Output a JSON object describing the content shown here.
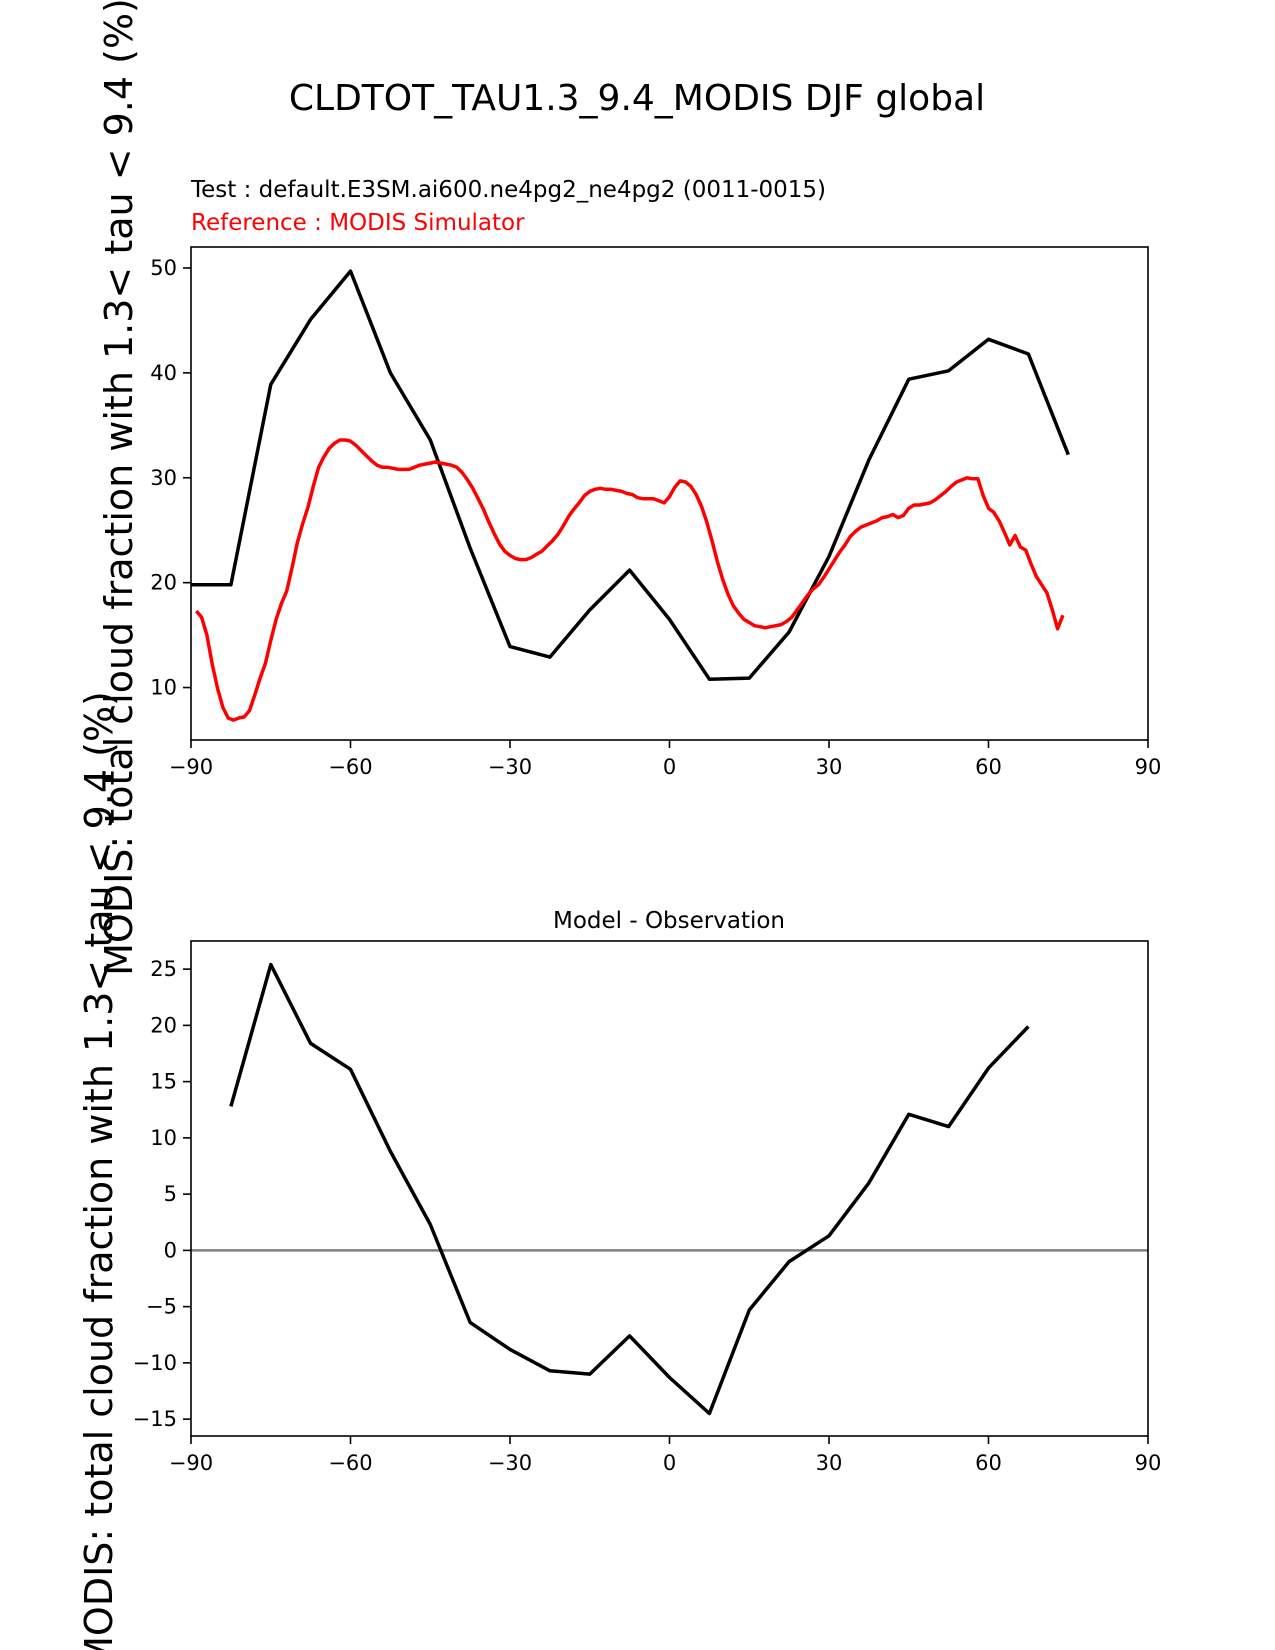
{
  "figure": {
    "title": "CLDTOT_TAU1.3_9.4_MODIS DJF global",
    "test_label": "Test : default.E3SM.ai600.ne4pg2_ne4pg2 (0011-0015)",
    "reference_label": "Reference : MODIS Simulator",
    "ylabel": "MODIS: total cloud fraction with 1.3< tau < 9.4 (%)"
  },
  "colors": {
    "test": "#000000",
    "reference": "#ff0000",
    "zero_line": "#808080",
    "axes": "#000000"
  },
  "chart_data": [
    {
      "type": "line",
      "panel": "top",
      "title": "",
      "xlabel": "",
      "ylabel": "MODIS: total cloud fraction with 1.3< tau < 9.4 (%)",
      "xlim": [
        -90,
        90
      ],
      "ylim": [
        5,
        52
      ],
      "xticks": [
        -90,
        -60,
        -30,
        0,
        30,
        60,
        90
      ],
      "xtick_labels": [
        "−90",
        "−60",
        "−30",
        "0",
        "30",
        "60",
        "90"
      ],
      "yticks": [
        10,
        20,
        30,
        40,
        50
      ],
      "ytick_labels": [
        "10",
        "20",
        "30",
        "40",
        "50"
      ],
      "grid": false,
      "series": [
        {
          "name": "",
          "color": "#000000",
          "x": [
            -90,
            -82.5,
            -75,
            -67.5,
            -60,
            -52.5,
            -45,
            -37.5,
            -30,
            -22.5,
            -15,
            -7.5,
            0,
            7.5,
            15,
            22.5,
            30,
            37.5,
            45,
            52.5,
            60,
            67.5,
            75
          ],
          "values": [
            19.8,
            19.8,
            38.9,
            45.1,
            49.7,
            40.0,
            33.6,
            23.3,
            13.9,
            12.9,
            17.4,
            21.2,
            16.5,
            10.8,
            10.9,
            15.3,
            22.5,
            31.7,
            39.4,
            40.2,
            43.2,
            41.8,
            32.2
          ]
        },
        {
          "name": "",
          "color": "#ff0000",
          "x": [
            -89,
            -88,
            -87,
            -86,
            -85,
            -84,
            -83,
            -82,
            -81,
            -80,
            -79,
            -78,
            -77,
            -76,
            -75,
            -74,
            -73,
            -72,
            -71,
            -70,
            -69,
            -68,
            -67,
            -66,
            -65,
            -64,
            -63,
            -62,
            -61,
            -60,
            -59,
            -58,
            -57,
            -56,
            -55,
            -54,
            -53,
            -52,
            -51,
            -50,
            -49,
            -48,
            -47,
            -46,
            -45,
            -44,
            -43,
            -42,
            -41,
            -40,
            -39,
            -38,
            -37,
            -36,
            -35,
            -34,
            -33,
            -32,
            -31,
            -30,
            -29,
            -28,
            -27,
            -26,
            -25,
            -24,
            -23,
            -22,
            -21,
            -20,
            -19,
            -18,
            -17,
            -16,
            -15,
            -14,
            -13,
            -12,
            -11,
            -10,
            -9,
            -8,
            -7,
            -6,
            -5,
            -4,
            -3,
            -2,
            -1,
            0,
            1,
            2,
            3,
            4,
            5,
            6,
            7,
            8,
            9,
            10,
            11,
            12,
            13,
            14,
            15,
            16,
            17,
            18,
            19,
            20,
            21,
            22,
            23,
            24,
            25,
            26,
            27,
            28,
            29,
            30,
            31,
            32,
            33,
            34,
            35,
            36,
            37,
            38,
            39,
            40,
            41,
            42,
            43,
            44,
            45,
            46,
            47,
            48,
            49,
            50,
            51,
            52,
            53,
            54,
            55,
            56,
            57,
            58,
            59,
            60,
            61,
            62,
            63,
            64,
            65,
            66,
            67,
            68,
            69,
            70,
            71,
            72,
            73,
            74
          ],
          "values": [
            17.3,
            16.7,
            15.0,
            12.2,
            9.9,
            8.1,
            7.1,
            6.9,
            7.1,
            7.2,
            7.8,
            9.3,
            10.9,
            12.3,
            14.5,
            16.5,
            18.0,
            19.2,
            21.4,
            23.8,
            25.6,
            27.2,
            29.2,
            31.0,
            32.0,
            32.8,
            33.3,
            33.6,
            33.6,
            33.5,
            33.1,
            32.6,
            32.1,
            31.6,
            31.2,
            31.0,
            31.0,
            30.9,
            30.8,
            30.8,
            30.8,
            31.0,
            31.2,
            31.3,
            31.4,
            31.5,
            31.4,
            31.3,
            31.2,
            31.0,
            30.5,
            29.8,
            29.0,
            28.0,
            27.0,
            25.8,
            24.7,
            23.7,
            23.0,
            22.6,
            22.3,
            22.2,
            22.2,
            22.4,
            22.7,
            23.0,
            23.5,
            24.0,
            24.6,
            25.4,
            26.3,
            27.0,
            27.6,
            28.3,
            28.7,
            28.9,
            29.0,
            28.9,
            28.9,
            28.8,
            28.7,
            28.5,
            28.4,
            28.1,
            28.0,
            28.0,
            28.0,
            27.8,
            27.6,
            28.2,
            29.1,
            29.7,
            29.6,
            29.2,
            28.4,
            27.3,
            25.8,
            24.0,
            22.0,
            20.3,
            18.9,
            17.8,
            17.1,
            16.5,
            16.2,
            15.9,
            15.8,
            15.7,
            15.8,
            15.9,
            16.0,
            16.3,
            16.7,
            17.4,
            18.1,
            18.8,
            19.4,
            19.8,
            20.5,
            21.3,
            22.1,
            22.9,
            23.6,
            24.4,
            24.9,
            25.3,
            25.5,
            25.7,
            25.9,
            26.2,
            26.3,
            26.5,
            26.2,
            26.4,
            27.1,
            27.4,
            27.4,
            27.5,
            27.6,
            27.9,
            28.3,
            28.7,
            29.2,
            29.6,
            29.8,
            30.0,
            29.9,
            29.9,
            28.3,
            27.1,
            26.7,
            25.9,
            24.8,
            23.6,
            24.5,
            23.4,
            23.1,
            21.8,
            20.6,
            19.8,
            19.0,
            17.4,
            15.6,
            16.9
          ]
        }
      ]
    },
    {
      "type": "line",
      "panel": "bottom",
      "title": "Model - Observation",
      "xlabel": "",
      "ylabel": "MODIS: total cloud fraction with 1.3< tau < 9.4 (%)",
      "xlim": [
        -90,
        90
      ],
      "ylim": [
        -16.5,
        27.5
      ],
      "xticks": [
        -90,
        -60,
        -30,
        0,
        30,
        60,
        90
      ],
      "xtick_labels": [
        "−90",
        "−60",
        "−30",
        "0",
        "30",
        "60",
        "90"
      ],
      "yticks": [
        -15,
        -10,
        -5,
        0,
        5,
        10,
        15,
        20,
        25
      ],
      "ytick_labels": [
        "−15",
        "−10",
        "−5",
        "0",
        "5",
        "10",
        "15",
        "20",
        "25"
      ],
      "grid": false,
      "reference_line": 0,
      "series": [
        {
          "name": "",
          "color": "#000000",
          "x": [
            -82.5,
            -75,
            -67.5,
            -60,
            -52.5,
            -45,
            -37.5,
            -30,
            -22.5,
            -15,
            -7.5,
            0,
            7.5,
            15,
            22.5,
            30,
            37.5,
            45,
            52.5,
            60,
            67.5
          ],
          "values": [
            12.8,
            25.4,
            18.4,
            16.1,
            8.8,
            2.3,
            -6.4,
            -8.8,
            -10.7,
            -11.0,
            -7.6,
            -11.3,
            -14.5,
            -5.3,
            -1.0,
            1.3,
            6.0,
            12.1,
            11.0,
            16.2,
            19.9
          ]
        }
      ]
    }
  ]
}
